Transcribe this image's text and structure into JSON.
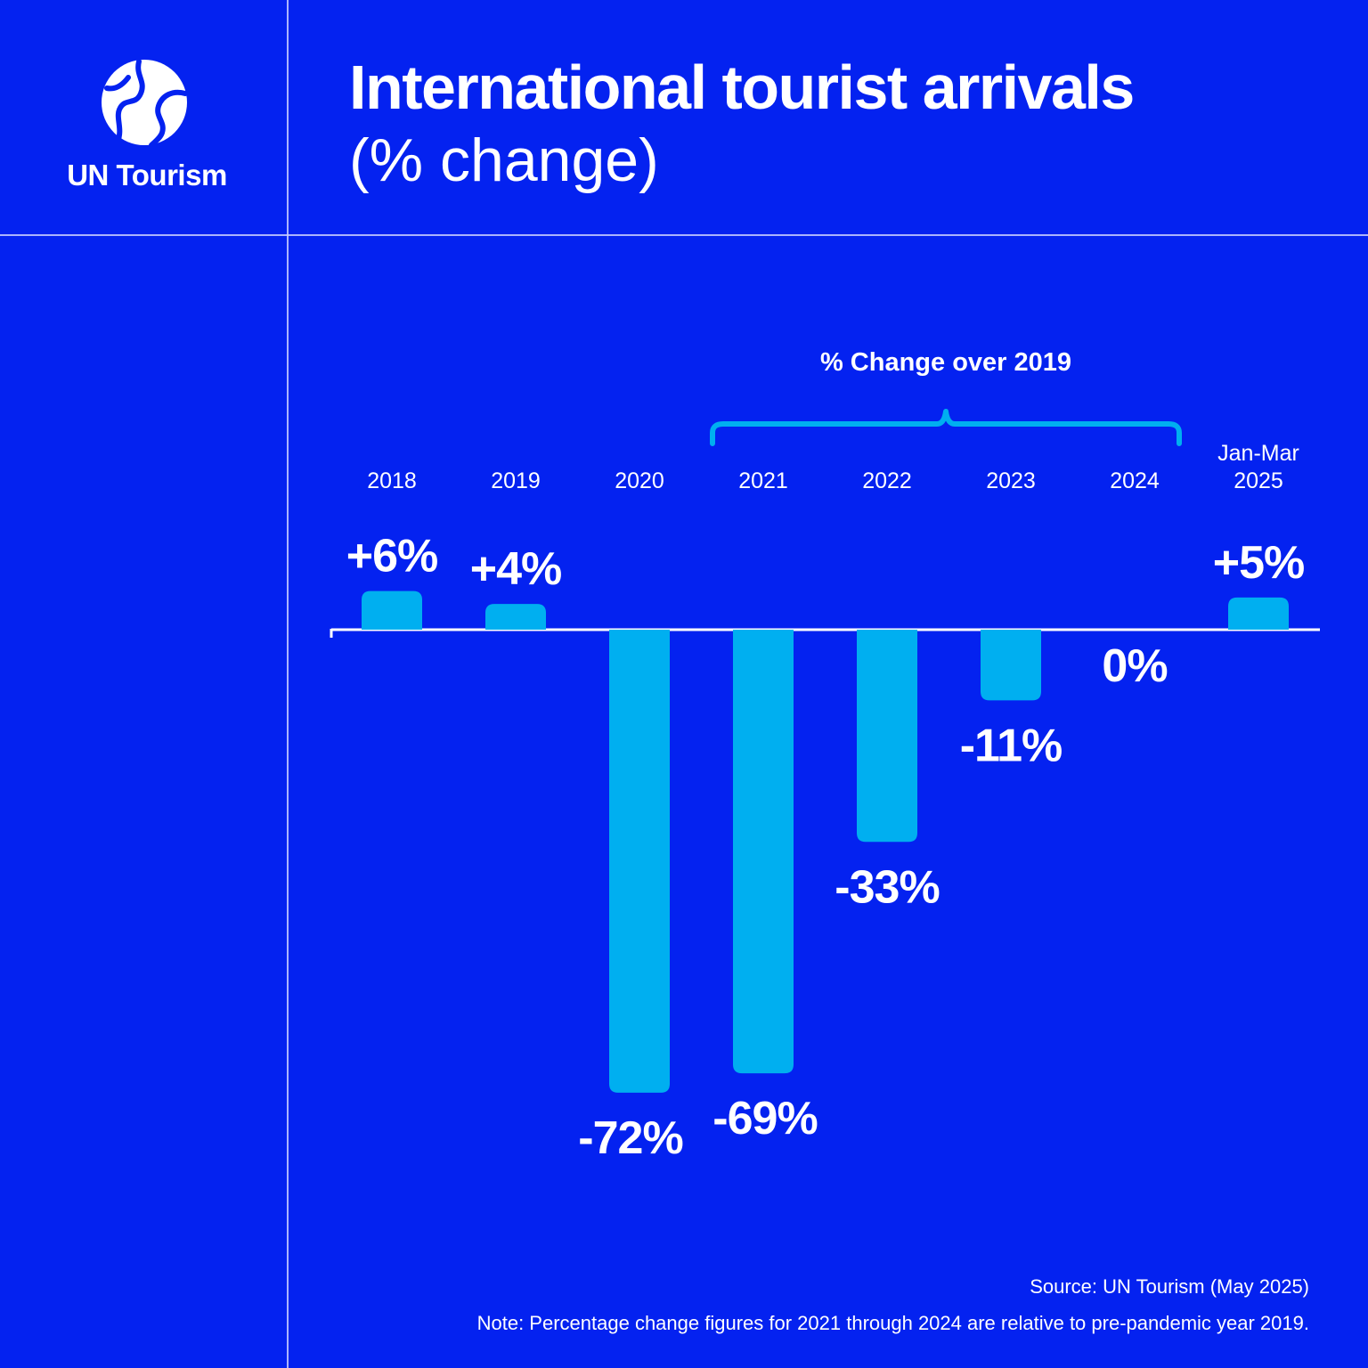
{
  "brand": {
    "name": "UN Tourism",
    "icon": "globe-logo-icon"
  },
  "header": {
    "title": "International tourist arrivals",
    "subtitle": "(% change)"
  },
  "chart_data": {
    "type": "bar",
    "title": "International tourist arrivals",
    "subtitle": "(% change)",
    "categories": [
      "2018",
      "2019",
      "2020",
      "2021",
      "2022",
      "2023",
      "2024",
      "Jan-Mar 2025"
    ],
    "category_lines": [
      [
        "2018"
      ],
      [
        "2019"
      ],
      [
        "2020"
      ],
      [
        "2021"
      ],
      [
        "2022"
      ],
      [
        "2023"
      ],
      [
        "2024"
      ],
      [
        "Jan-Mar",
        "2025"
      ]
    ],
    "values": [
      6,
      4,
      -72,
      -69,
      -33,
      -11,
      0,
      5
    ],
    "labels": [
      "+6%",
      "+4%",
      "-72%",
      "-69%",
      "-33%",
      "-11%",
      "0%",
      "+5%"
    ],
    "annotation": {
      "text": "% Change over 2019",
      "from": "2021",
      "to": "2024"
    },
    "ylabel": "% change",
    "ylim": [
      -72,
      6
    ],
    "grid": false,
    "bar_color": "#00aff0",
    "axis_color": "#ffffff"
  },
  "footer": {
    "source": "Source: UN Tourism (May 2025)",
    "note": "Note: Percentage change figures for 2021 through 2024 are relative to pre-pandemic year 2019."
  },
  "colors": {
    "background": "#0422f0",
    "bars": "#00aff0",
    "text": "#ffffff"
  }
}
